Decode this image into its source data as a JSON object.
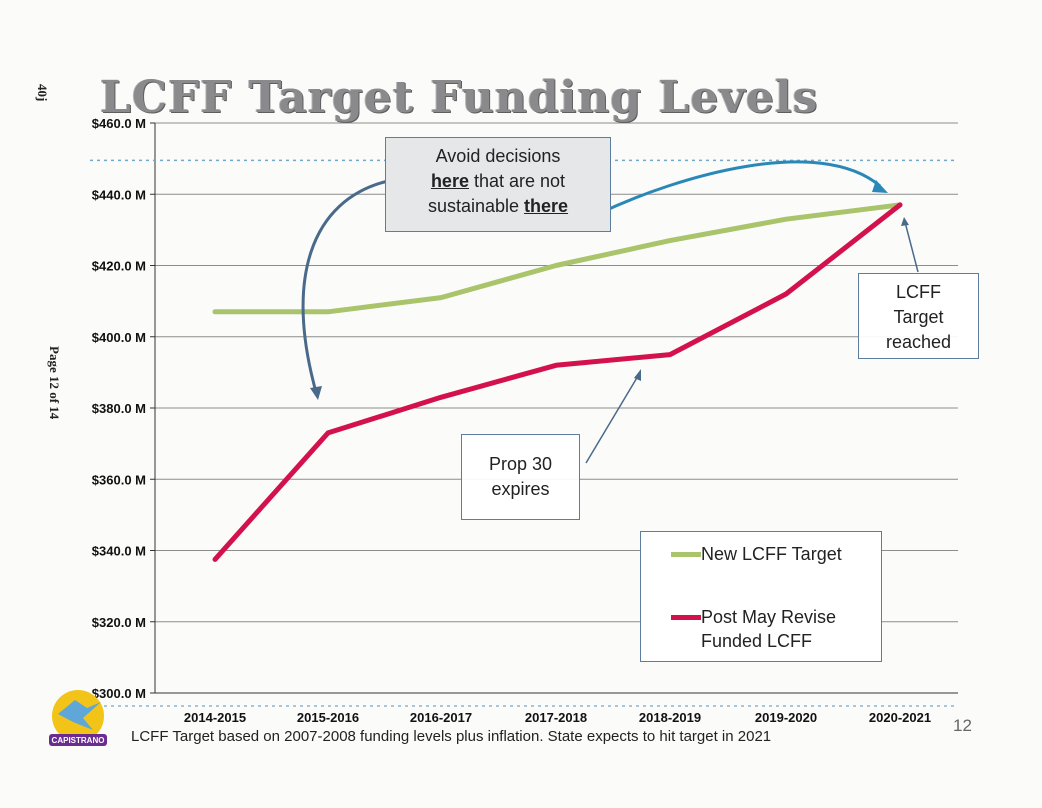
{
  "page": {
    "title": "LCFF Target Funding Levels",
    "stamp_top": "40j",
    "stamp_side": "Page 12 of 14",
    "page_number": "12",
    "footnote": "LCFF Target based on 2007-2008 funding levels plus inflation. State expects to hit target in 2021",
    "logo_text": "CAPISTRANO"
  },
  "callouts": {
    "avoid": {
      "line1": "Avoid decisions",
      "here": "here",
      "line2_rest": " that are not",
      "line3_pre": "sustainable ",
      "there": "there"
    },
    "target_reached": {
      "line1": "LCFF",
      "line2": "Target",
      "line3": "reached"
    },
    "prop30": {
      "line1": "Prop 30",
      "line2": "expires"
    }
  },
  "colors": {
    "target": "#a9c46a",
    "funded": "#d3124d",
    "grid": "#8c8c8c",
    "dotted": "#6fa8c9",
    "arrow_gray": "#4a6a8a",
    "arrow_blue": "#2a88b8"
  },
  "chart_data": {
    "type": "line",
    "title": "LCFF Target Funding Levels",
    "xlabel": "",
    "ylabel": "",
    "categories": [
      "2014-2015",
      "2015-2016",
      "2016-2017",
      "2017-2018",
      "2018-2019",
      "2019-2020",
      "2020-2021"
    ],
    "y_ticks": [
      "$300.0 M",
      "$320.0 M",
      "$340.0 M",
      "$360.0 M",
      "$380.0 M",
      "$400.0 M",
      "$420.0 M",
      "$440.0 M",
      "$460.0 M"
    ],
    "ylim": [
      300,
      460
    ],
    "grid": true,
    "legend_position": "bottom-right",
    "series": [
      {
        "name": "New LCFF Target",
        "values": [
          407,
          407,
          411,
          420,
          427,
          433,
          437
        ]
      },
      {
        "name": "Post May Revise Funded LCFF",
        "values": [
          337.5,
          373,
          383,
          392,
          395,
          412,
          437
        ]
      }
    ],
    "reference_line": 449.5
  }
}
